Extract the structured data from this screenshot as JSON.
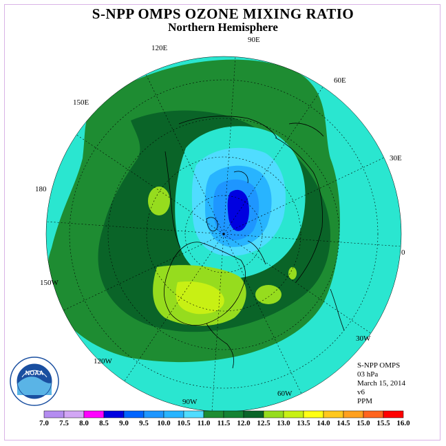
{
  "title": "S-NPP OMPS OZONE MIXING RATIO",
  "subtitle": "Northern Hemisphere",
  "longitude_labels": [
    "90E",
    "60E",
    "30E",
    "0",
    "30W",
    "60W",
    "90W",
    "120W",
    "150W",
    "180",
    "150E",
    "120E"
  ],
  "info": {
    "instrument": "S-NPP OMPS",
    "level": "03 hPa",
    "date": "March 15, 2014",
    "version": "v6",
    "units": "PPM"
  },
  "logo": {
    "name": "NOAA",
    "ring_text": "NATIONAL OCEANIC AND ATMOSPHERIC ADMINISTRATION · U.S. DEPARTMENT OF COMMERCE"
  },
  "colorbar": {
    "ticks": [
      "7.0",
      "7.5",
      "8.0",
      "8.5",
      "9.0",
      "9.5",
      "10.0",
      "10.5",
      "11.0",
      "11.5",
      "12.0",
      "12.5",
      "13.0",
      "13.5",
      "14.0",
      "14.5",
      "15.0",
      "15.5",
      "16.0"
    ],
    "colors": [
      "#b48cf0",
      "#d2a6f5",
      "#ff00ff",
      "#0000e0",
      "#0064ff",
      "#1e96ff",
      "#28b4ff",
      "#50dcff",
      "#1e8c32",
      "#148232",
      "#0a6428",
      "#96dc1e",
      "#c8f014",
      "#ffff14",
      "#ffc81e",
      "#ffa01e",
      "#ff641e",
      "#ff0000",
      "#8c5032"
    ]
  }
}
